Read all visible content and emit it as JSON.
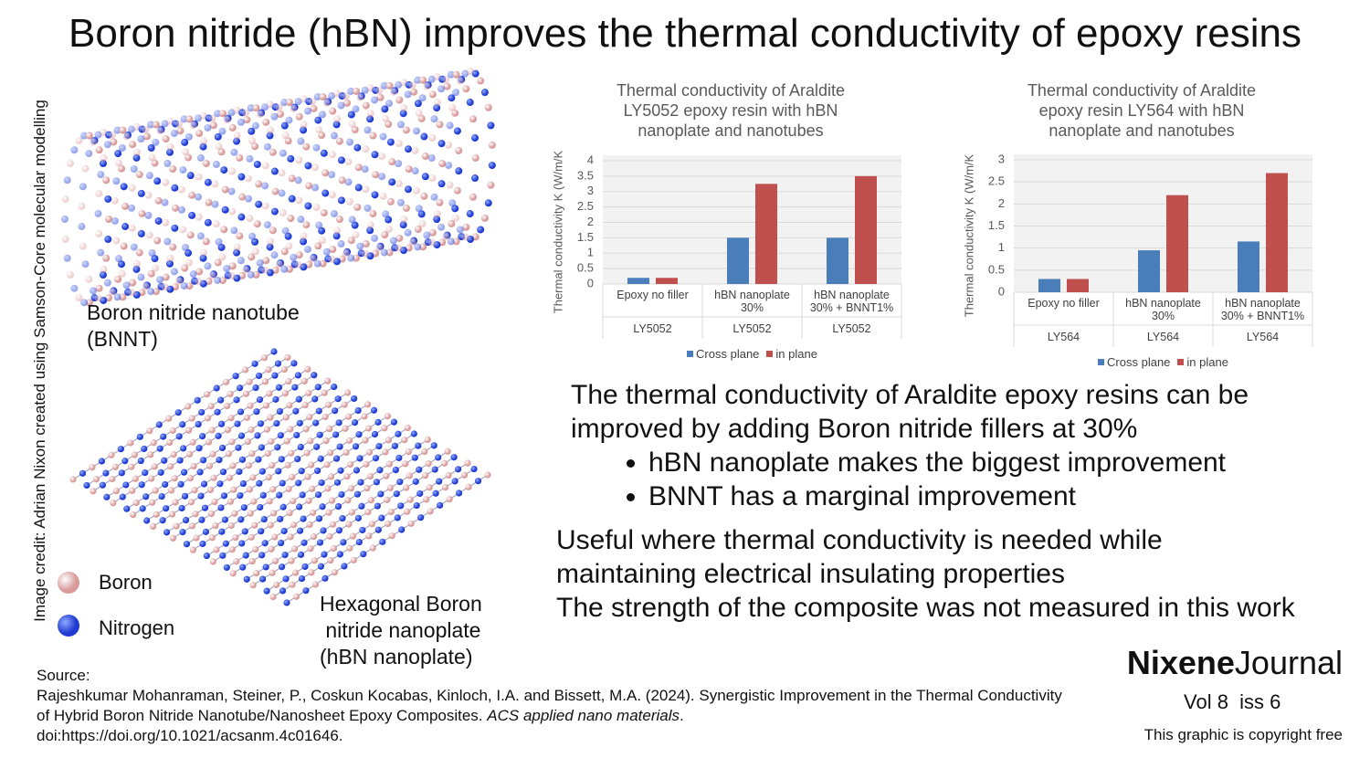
{
  "title": "Boron nitride (hBN) improves the thermal conductivity of epoxy resins",
  "image_credit": "Image credit: Adrian Nixon created using Samson-Core molecular modelling",
  "illustrations": {
    "nanotube_label": "Boron nitride nanotube\n(BNNT)",
    "nanoplate_label": "Hexagonal Boron\n nitride nanoplate\n(hBN nanoplate)",
    "legend": [
      "Boron",
      "Nitrogen"
    ]
  },
  "chart_data": [
    {
      "type": "bar",
      "title": "Thermal conductivity of Araldite\nLY5052 epoxy resin with hBN\nnanoplate and nanotubes",
      "y_label": "Thermal conductivity K (W/m/K",
      "categories": [
        "Epoxy  no filler",
        "hBN nanoplate\n30%",
        "hBN nanoplate\n30% + BNNT1%"
      ],
      "groups": [
        "LY5052",
        "LY5052",
        "LY5052"
      ],
      "series": [
        {
          "name": "Cross plane",
          "color": "#4a7ebb",
          "values": [
            0.2,
            1.5,
            1.5
          ]
        },
        {
          "name": "in plane",
          "color": "#c0504d",
          "values": [
            0.2,
            3.25,
            3.5
          ]
        }
      ],
      "ylim": [
        0,
        4
      ],
      "yticks": [
        0,
        0.5,
        1,
        1.5,
        2,
        2.5,
        3,
        3.5,
        4
      ],
      "grid": true,
      "legend": "bottom"
    },
    {
      "type": "bar",
      "title": "Thermal conductivity of Araldite\nepoxy resin LY564 with hBN\nnanoplate and nanotubes",
      "y_label": "Thermal conductivity K (W/m/K",
      "categories": [
        "Epoxy  no filler",
        "hBN nanoplate\n30%",
        "hBN nanoplate\n30% + BNNT1%"
      ],
      "groups": [
        "LY564",
        "LY564",
        "LY564"
      ],
      "series": [
        {
          "name": "Cross plane",
          "color": "#4a7ebb",
          "values": [
            0.3,
            0.95,
            1.15
          ]
        },
        {
          "name": "in plane",
          "color": "#c0504d",
          "values": [
            0.3,
            2.2,
            2.7
          ]
        }
      ],
      "ylim": [
        0,
        3
      ],
      "yticks": [
        0,
        0.5,
        1,
        1.5,
        2,
        2.5,
        3
      ],
      "grid": true,
      "legend": "bottom"
    }
  ],
  "summary": {
    "intro": "The thermal conductivity of Araldite epoxy resins can be\nimproved by adding Boron nitride fillers at 30%",
    "bullets": [
      "hBN nanoplate makes the biggest improvement",
      "BNNT has a marginal improvement"
    ],
    "conclusion": "Useful where thermal conductivity is needed while\nmaintaining electrical insulating properties",
    "note": "The strength of the composite was not measured in this work"
  },
  "source": {
    "label": "Source:",
    "reference": "Rajeshkumar Mohanraman, Steiner, P., Coskun Kocabas, Kinloch, I.A. and Bissett, M.A. (2024). Synergistic Improvement in the Thermal Conductivity of Hybrid Boron Nitride Nanotube/Nanosheet Epoxy Composites. ",
    "journal": "ACS applied nano materials",
    "end": ".",
    "doi": "doi:https://doi.org/10.1021/acsanm.4c01646."
  },
  "brand": {
    "name_bold": "Nixene",
    "name": "Journal",
    "issue": "Vol 8  iss 6",
    "copyright": "This graphic is copyright free"
  }
}
